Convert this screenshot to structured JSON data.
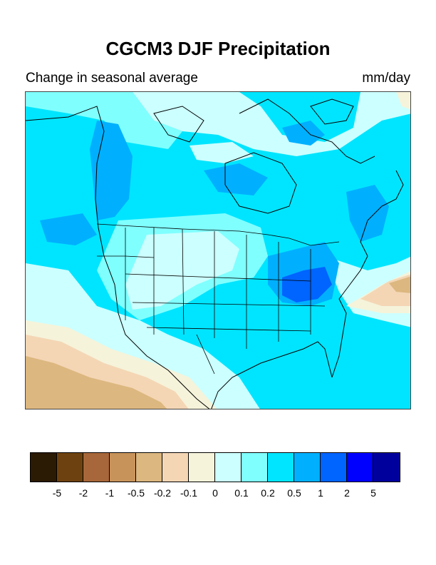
{
  "title": "CGCM3 DJF Precipitation",
  "subtitle_left": "Change in seasonal average",
  "subtitle_right": "mm/day",
  "colorbar": {
    "colors": [
      "#2b1a04",
      "#6e4210",
      "#a8673a",
      "#c8935a",
      "#dcb77f",
      "#f4d6b5",
      "#f5f3da",
      "#ccffff",
      "#80ffff",
      "#00e5ff",
      "#00b0ff",
      "#0064ff",
      "#0000ff",
      "#00009c"
    ],
    "labels": [
      "-5",
      "-2",
      "-1",
      "-0.5",
      "-0.2",
      "-0.1",
      "0",
      "0.1",
      "0.2",
      "0.5",
      "1",
      "2",
      "5"
    ]
  },
  "map": {
    "region": "North America",
    "palette": {
      "light_cyan": "#ccffff",
      "mid_cyan": "#80ffff",
      "cyan": "#00e5ff",
      "sky_blue": "#00b0ff",
      "blue": "#0064ff",
      "pale_yellow": "#f5f3da",
      "peach": "#f4d6b5",
      "tan": "#dcb77f",
      "dark_tan": "#c8935a",
      "outline": "#000000"
    }
  }
}
